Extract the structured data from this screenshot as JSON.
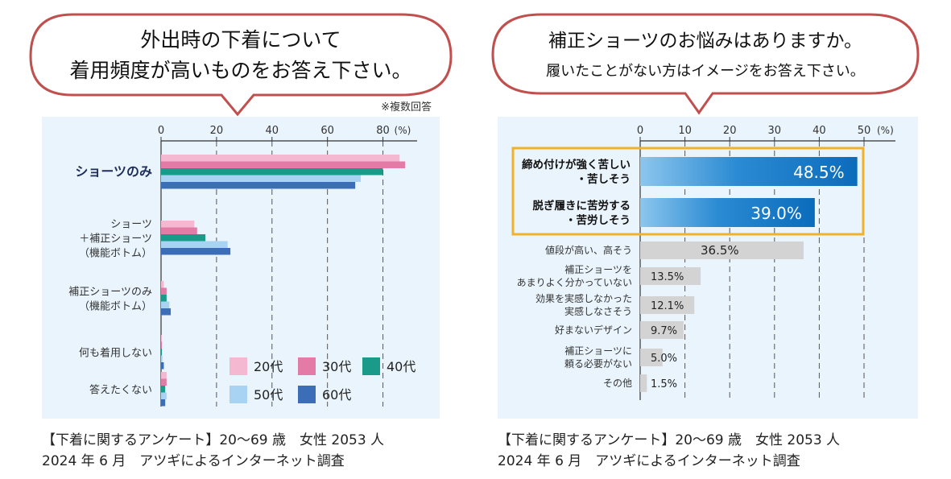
{
  "colors": {
    "bubble_border": "#c0504d",
    "panel_bg": "#eaf4fc",
    "highlight_border": "#f0b22a",
    "blue_dark": "#1377c5",
    "blue_light": "#6fb3e6",
    "gray_bar": "#d3d3d3"
  },
  "left": {
    "bubble_line1": "外出時の下着について",
    "bubble_line2": "着用頻度が高いものをお答え下さい。",
    "note": "※複数回答",
    "caption_line1": "【下着に関するアンケート】20〜69 歳　女性 2053 人",
    "caption_line2": "2024 年 6 月　アツギによるインターネット調査"
  },
  "right": {
    "bubble_line1": "補正ショーツのお悩みはありますか。",
    "bubble_line2": "履いたことがない方はイメージをお答え下さい。",
    "caption_line1": "【下着に関するアンケート】20〜69 歳　女性 2053 人",
    "caption_line2": "2024 年 6 月　アツギによるインターネット調査"
  },
  "chart_data": [
    {
      "type": "bar",
      "orientation": "horizontal",
      "title": "外出時の下着について 着用頻度が高いものをお答え下さい。",
      "unit": "(%)",
      "xlim": [
        0,
        90
      ],
      "ticks": [
        0,
        20,
        40,
        60,
        80
      ],
      "categories": [
        {
          "lines": [
            "ショーツのみ"
          ],
          "bold": true
        },
        {
          "lines": [
            "ショーツ",
            "＋補正ショーツ",
            "（機能ボトム）"
          ],
          "bold": false
        },
        {
          "lines": [
            "補正ショーツのみ",
            "（機能ボトム）"
          ],
          "bold": false
        },
        {
          "lines": [
            "何も着用しない"
          ],
          "bold": false
        },
        {
          "lines": [
            "答えたくない"
          ],
          "bold": false
        }
      ],
      "series": [
        {
          "name": "20代",
          "color": "#f4b8d0",
          "values": [
            86,
            12,
            1,
            0.3,
            2
          ]
        },
        {
          "name": "30代",
          "color": "#e37ba6",
          "values": [
            88,
            13,
            2,
            0.3,
            2
          ]
        },
        {
          "name": "40代",
          "color": "#1a9b8a",
          "values": [
            80,
            16,
            2,
            0.3,
            1.5
          ]
        },
        {
          "name": "50代",
          "color": "#a9d3f2",
          "values": [
            72,
            24,
            3,
            0.5,
            2
          ]
        },
        {
          "name": "60代",
          "color": "#3c6eb8",
          "values": [
            70,
            25,
            3.5,
            1,
            1.5
          ]
        }
      ],
      "legend_position": "bottom-right"
    },
    {
      "type": "bar",
      "orientation": "horizontal",
      "title": "補正ショーツのお悩みはありますか。 履いたことがない方はイメージをお答え下さい。",
      "unit": "(%)",
      "xlim": [
        0,
        50
      ],
      "ticks": [
        0,
        10,
        20,
        30,
        40,
        50
      ],
      "categories": [
        {
          "lines": [
            "締め付けが強く苦しい",
            "・苦しそう"
          ],
          "value": 48.5,
          "label": "48.5%",
          "highlight": true
        },
        {
          "lines": [
            "脱ぎ履きに苦労する",
            "・苦労しそう"
          ],
          "value": 39.0,
          "label": "39.0%",
          "highlight": true
        },
        {
          "lines": [
            "値段が高い、高そう"
          ],
          "value": 36.5,
          "label": "36.5%",
          "highlight": false
        },
        {
          "lines": [
            "補正ショーツを",
            "あまりよく分かっていない"
          ],
          "value": 13.5,
          "label": "13.5%",
          "highlight": false
        },
        {
          "lines": [
            "効果を実感しなかった",
            "実感しなさそう"
          ],
          "value": 12.1,
          "label": "12.1%",
          "highlight": false
        },
        {
          "lines": [
            "好まないデザイン"
          ],
          "value": 9.7,
          "label": "9.7%",
          "highlight": false
        },
        {
          "lines": [
            "補正ショーツに",
            "頼る必要がない"
          ],
          "value": 5.0,
          "label": "5.0%",
          "highlight": false
        },
        {
          "lines": [
            "その他"
          ],
          "value": 1.5,
          "label": "1.5%",
          "highlight": false
        }
      ]
    }
  ]
}
